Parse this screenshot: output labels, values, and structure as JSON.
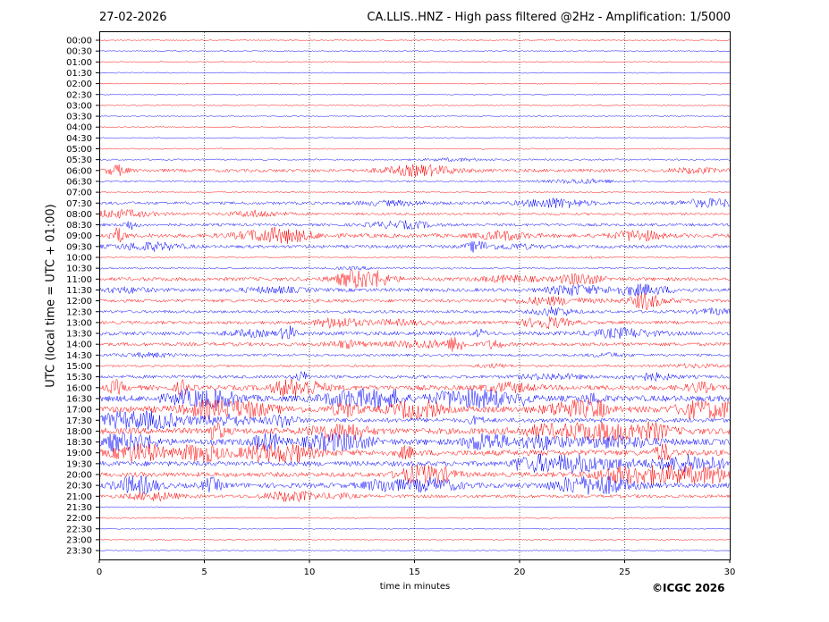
{
  "header": {
    "date": "27-02-2026",
    "title": "CA.LLIS..HNZ - High pass filtered @2Hz - Amplification: 1/5000"
  },
  "footer": {
    "copyright": "©ICGC 2026"
  },
  "chart_data": {
    "type": "line",
    "title": "CA.LLIS..HNZ - High pass filtered @2Hz - Amplification: 1/5000",
    "xlabel": "time in minutes",
    "ylabel": "UTC (local time = UTC + 01:00)",
    "xlim": [
      0,
      30
    ],
    "x_ticks": [
      0,
      5,
      10,
      15,
      20,
      25,
      30
    ],
    "grid": "vertical dotted lines at every 5 minutes",
    "trace_colors": [
      "#ff0000",
      "#0000ff"
    ],
    "rows": [
      {
        "label": "00:00",
        "amp": 0.05
      },
      {
        "label": "00:30",
        "amp": 0.05
      },
      {
        "label": "01:00",
        "amp": 0.06
      },
      {
        "label": "01:30",
        "amp": 0.05
      },
      {
        "label": "02:00",
        "amp": 0.04
      },
      {
        "label": "02:30",
        "amp": 0.04
      },
      {
        "label": "03:00",
        "amp": 0.07
      },
      {
        "label": "03:30",
        "amp": 0.05
      },
      {
        "label": "04:00",
        "amp": 0.06
      },
      {
        "label": "04:30",
        "amp": 0.07
      },
      {
        "label": "05:00",
        "amp": 0.07
      },
      {
        "label": "05:30",
        "amp": 0.12
      },
      {
        "label": "06:00",
        "amp": 0.35
      },
      {
        "label": "06:30",
        "amp": 0.15
      },
      {
        "label": "07:00",
        "amp": 0.08
      },
      {
        "label": "07:30",
        "amp": 0.3
      },
      {
        "label": "08:00",
        "amp": 0.25
      },
      {
        "label": "08:30",
        "amp": 0.3
      },
      {
        "label": "09:00",
        "amp": 0.45
      },
      {
        "label": "09:30",
        "amp": 0.35
      },
      {
        "label": "10:00",
        "amp": 0.1
      },
      {
        "label": "10:30",
        "amp": 0.15
      },
      {
        "label": "11:00",
        "amp": 0.4
      },
      {
        "label": "11:30",
        "amp": 0.4
      },
      {
        "label": "12:00",
        "amp": 0.35
      },
      {
        "label": "12:30",
        "amp": 0.3
      },
      {
        "label": "13:00",
        "amp": 0.35
      },
      {
        "label": "13:30",
        "amp": 0.45
      },
      {
        "label": "14:00",
        "amp": 0.4
      },
      {
        "label": "14:30",
        "amp": 0.25
      },
      {
        "label": "15:00",
        "amp": 0.2
      },
      {
        "label": "15:30",
        "amp": 0.35
      },
      {
        "label": "16:00",
        "amp": 0.6
      },
      {
        "label": "16:30",
        "amp": 0.75
      },
      {
        "label": "17:00",
        "amp": 0.8
      },
      {
        "label": "17:30",
        "amp": 0.5
      },
      {
        "label": "18:00",
        "amp": 0.75
      },
      {
        "label": "18:30",
        "amp": 0.75
      },
      {
        "label": "19:00",
        "amp": 0.7
      },
      {
        "label": "19:30",
        "amp": 0.6
      },
      {
        "label": "20:00",
        "amp": 0.55
      },
      {
        "label": "20:30",
        "amp": 0.6
      },
      {
        "label": "21:00",
        "amp": 0.35
      },
      {
        "label": "21:30",
        "amp": 0.05
      },
      {
        "label": "22:00",
        "amp": 0.08
      },
      {
        "label": "22:30",
        "amp": 0.04
      },
      {
        "label": "23:00",
        "amp": 0.05
      },
      {
        "label": "23:30",
        "amp": 0.04
      }
    ]
  }
}
